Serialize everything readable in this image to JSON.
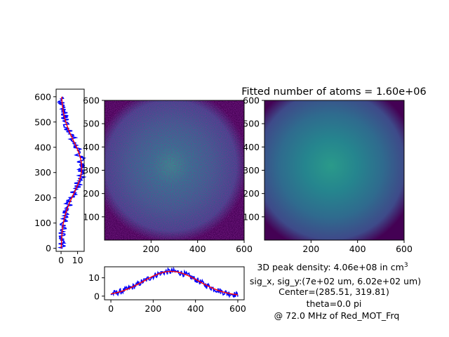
{
  "figure": {
    "title": "Fitted number of atoms = 1.60e+06",
    "info_lines": [
      "3D peak density: 4.06e+08 in cm",
      "sig_x, sig_y:(7e+02 um, 6.02e+02 um)",
      "Center=(285.51, 319.81)",
      "theta=0.0 pi",
      "@ 72.0 MHz of Red_MOT_Frq"
    ],
    "info_superscript": "3"
  },
  "colors": {
    "data_line": "#0000ff",
    "fit_line": "#ff0000",
    "map_low": "#440154",
    "map_high": "#2a9a8a"
  },
  "chart_data": [
    {
      "type": "line",
      "name": "vertical-profile",
      "x_axis": {
        "range": [
          -3,
          14
        ],
        "ticks": [
          0,
          10
        ],
        "tick_labels": [
          "0",
          "10"
        ]
      },
      "y_axis": {
        "range": [
          -12,
          630
        ],
        "ticks": [
          0,
          100,
          200,
          300,
          400,
          500,
          600
        ],
        "tick_labels": [
          "0",
          "100",
          "200",
          "300",
          "400",
          "500",
          "600"
        ]
      },
      "fit": {
        "amplitude": 12.5,
        "offset": 0,
        "center": 320,
        "sigma": 105,
        "y_min": 0,
        "y_max": 600
      },
      "data_noise": 1.6
    },
    {
      "type": "heatmap",
      "name": "raw-image",
      "x_axis": {
        "range": [
          0,
          600
        ],
        "ticks": [
          200,
          400,
          600
        ],
        "tick_labels": [
          "200",
          "400",
          "600"
        ]
      },
      "y_axis": {
        "range": [
          0,
          600
        ],
        "ticks": [
          100,
          200,
          300,
          400,
          500,
          600
        ],
        "tick_labels": [
          "100",
          "200",
          "300",
          "400",
          "500",
          "600"
        ]
      },
      "center": [
        285.51,
        319.81
      ],
      "noisy": true
    },
    {
      "type": "heatmap",
      "name": "fitted-image",
      "x_axis": {
        "range": [
          0,
          600
        ],
        "ticks": [
          200,
          400,
          600
        ],
        "tick_labels": [
          "200",
          "400",
          "600"
        ]
      },
      "y_axis": {
        "range": [
          0,
          600
        ],
        "ticks": [
          100,
          200,
          300,
          400,
          500,
          600
        ],
        "tick_labels": [
          "100",
          "200",
          "300",
          "400",
          "500",
          "600"
        ]
      },
      "center": [
        285.51,
        319.81
      ],
      "noisy": false
    },
    {
      "type": "line",
      "name": "horizontal-profile",
      "x_axis": {
        "range": [
          -30,
          630
        ],
        "ticks": [
          0,
          200,
          400,
          600
        ],
        "tick_labels": [
          "0",
          "200",
          "400",
          "600"
        ]
      },
      "y_axis": {
        "range": [
          -2,
          16
        ],
        "ticks": [
          0,
          10
        ],
        "tick_labels": [
          "0",
          "10"
        ]
      },
      "fit": {
        "amplitude": 13.5,
        "offset": 0,
        "center": 285,
        "sigma": 130,
        "x_min": 0,
        "x_max": 600
      },
      "data_noise": 1.0
    }
  ]
}
